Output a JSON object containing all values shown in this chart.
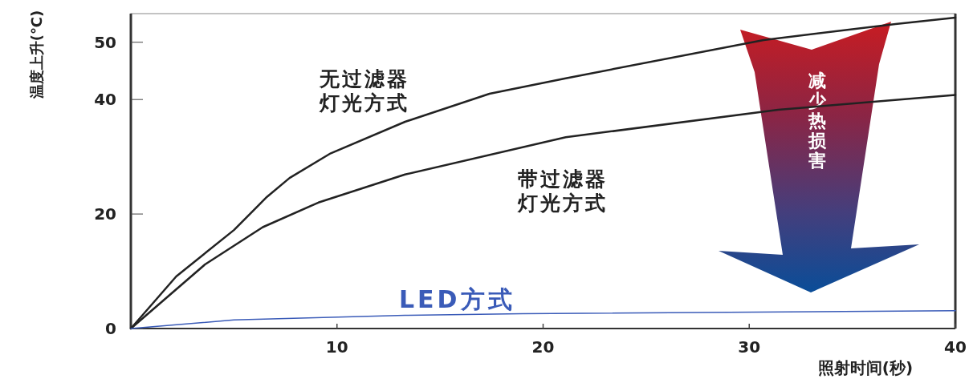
{
  "chart_data": {
    "type": "line",
    "xlabel": "照射时间(秒)",
    "ylabel": "温度上升(℃)",
    "xlim": [
      0,
      40
    ],
    "xticks": [
      10,
      20,
      30,
      40
    ],
    "ylim": [
      0,
      55
    ],
    "yticks": [
      0,
      20,
      40,
      50
    ],
    "grid": false,
    "legend": false,
    "marker": "none",
    "line_style": "solid",
    "annotations": [
      "减少热损害"
    ],
    "series": [
      {
        "name": "无过滤器灯光方式",
        "color": "#222222",
        "x": [
          0,
          2.2,
          5.0,
          6.6,
          7.7,
          9.7,
          13.3,
          17.4,
          21.1,
          30.7,
          37.1,
          40
        ],
        "values": [
          0,
          9.1,
          17.2,
          23,
          26.3,
          30.6,
          36.1,
          41,
          43.7,
          50.4,
          53.2,
          54.3
        ]
      },
      {
        "name": "带过滤器灯光方式",
        "color": "#222222",
        "x": [
          0,
          3.6,
          6.4,
          9.1,
          13.3,
          21.1,
          31.4,
          40
        ],
        "values": [
          0,
          11.2,
          17.7,
          22,
          26.9,
          33.4,
          38.2,
          40.8
        ]
      },
      {
        "name": "LED方式",
        "color": "#3a5bb8",
        "x": [
          0,
          5,
          13.3,
          19,
          40
        ],
        "values": [
          0,
          1.5,
          2.3,
          2.6,
          3.1
        ]
      }
    ]
  }
}
